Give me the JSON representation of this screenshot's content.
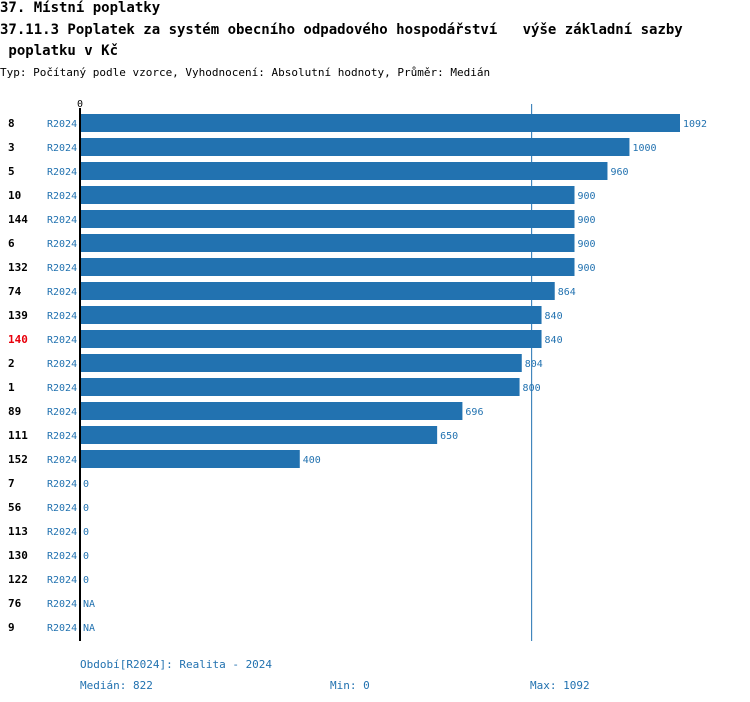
{
  "header": {
    "section": "37. Místní poplatky",
    "title_line1": "37.11.3 Poplatek za systém obecního odpadového hospodářství   výše základní sazby",
    "title_line2": " poplatku v Kč",
    "subtitle": "Typ: Počítaný podle vzorce, Vyhodnocení: Absolutní hodnoty, Průměr: Medián"
  },
  "colors": {
    "bar": "#2272b0",
    "highlight": "#e8000b",
    "text": "#000000",
    "value_text": "#2272b0"
  },
  "chart_data": {
    "type": "bar",
    "orientation": "horizontal",
    "axis_zero_label": "0",
    "xlim": [
      0,
      1092
    ],
    "median": 822,
    "series_label": "R2024",
    "highlight_category": "140",
    "rows": [
      {
        "id": "8",
        "series": "R2024",
        "value": 1092,
        "label": "1092"
      },
      {
        "id": "3",
        "series": "R2024",
        "value": 1000,
        "label": "1000"
      },
      {
        "id": "5",
        "series": "R2024",
        "value": 960,
        "label": "960"
      },
      {
        "id": "10",
        "series": "R2024",
        "value": 900,
        "label": "900"
      },
      {
        "id": "144",
        "series": "R2024",
        "value": 900,
        "label": "900"
      },
      {
        "id": "6",
        "series": "R2024",
        "value": 900,
        "label": "900"
      },
      {
        "id": "132",
        "series": "R2024",
        "value": 900,
        "label": "900"
      },
      {
        "id": "74",
        "series": "R2024",
        "value": 864,
        "label": "864"
      },
      {
        "id": "139",
        "series": "R2024",
        "value": 840,
        "label": "840"
      },
      {
        "id": "140",
        "series": "R2024",
        "value": 840,
        "label": "840"
      },
      {
        "id": "2",
        "series": "R2024",
        "value": 804,
        "label": "804"
      },
      {
        "id": "1",
        "series": "R2024",
        "value": 800,
        "label": "800"
      },
      {
        "id": "89",
        "series": "R2024",
        "value": 696,
        "label": "696"
      },
      {
        "id": "111",
        "series": "R2024",
        "value": 650,
        "label": "650"
      },
      {
        "id": "152",
        "series": "R2024",
        "value": 400,
        "label": "400"
      },
      {
        "id": "7",
        "series": "R2024",
        "value": 0,
        "label": "0"
      },
      {
        "id": "56",
        "series": "R2024",
        "value": 0,
        "label": "0"
      },
      {
        "id": "113",
        "series": "R2024",
        "value": 0,
        "label": "0"
      },
      {
        "id": "130",
        "series": "R2024",
        "value": 0,
        "label": "0"
      },
      {
        "id": "122",
        "series": "R2024",
        "value": 0,
        "label": "0"
      },
      {
        "id": "76",
        "series": "R2024",
        "value": null,
        "label": "NA"
      },
      {
        "id": "9",
        "series": "R2024",
        "value": null,
        "label": "NA"
      }
    ]
  },
  "footer": {
    "period": "Období[R2024]: Realita - 2024",
    "median": "Medián: 822",
    "min": "Min: 0",
    "max": "Max: 1092"
  }
}
